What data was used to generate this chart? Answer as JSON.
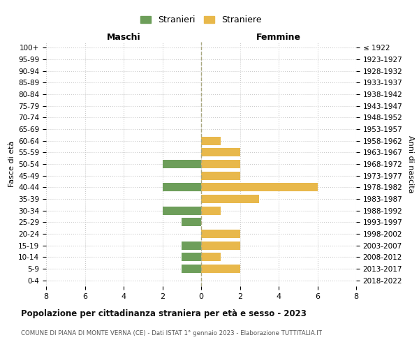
{
  "age_groups": [
    "100+",
    "95-99",
    "90-94",
    "85-89",
    "80-84",
    "75-79",
    "70-74",
    "65-69",
    "60-64",
    "55-59",
    "50-54",
    "45-49",
    "40-44",
    "35-39",
    "30-34",
    "25-29",
    "20-24",
    "15-19",
    "10-14",
    "5-9",
    "0-4"
  ],
  "birth_years": [
    "≤ 1922",
    "1923-1927",
    "1928-1932",
    "1933-1937",
    "1938-1942",
    "1943-1947",
    "1948-1952",
    "1953-1957",
    "1958-1962",
    "1963-1967",
    "1968-1972",
    "1973-1977",
    "1978-1982",
    "1983-1987",
    "1988-1992",
    "1993-1997",
    "1998-2002",
    "2003-2007",
    "2008-2012",
    "2013-2017",
    "2018-2022"
  ],
  "stranieri": [
    0,
    0,
    0,
    0,
    0,
    0,
    0,
    0,
    0,
    0,
    2,
    0,
    2,
    0,
    2,
    1,
    0,
    1,
    1,
    1,
    0
  ],
  "straniere": [
    0,
    0,
    0,
    0,
    0,
    0,
    0,
    0,
    1,
    2,
    2,
    2,
    6,
    3,
    1,
    0,
    2,
    2,
    1,
    2,
    0
  ],
  "color_stranieri": "#6d9e5a",
  "color_straniere": "#e8b84b",
  "title": "Popolazione per cittadinanza straniera per età e sesso - 2023",
  "subtitle": "COMUNE DI PIANA DI MONTE VERNA (CE) - Dati ISTAT 1° gennaio 2023 - Elaborazione TUTTITALIA.IT",
  "xlabel_left": "Maschi",
  "xlabel_right": "Femmine",
  "ylabel_left": "Fasce di età",
  "ylabel_right": "Anni di nascita",
  "legend_stranieri": "Stranieri",
  "legend_straniere": "Straniere",
  "xlim": 8,
  "background_color": "#ffffff",
  "grid_color": "#cccccc"
}
